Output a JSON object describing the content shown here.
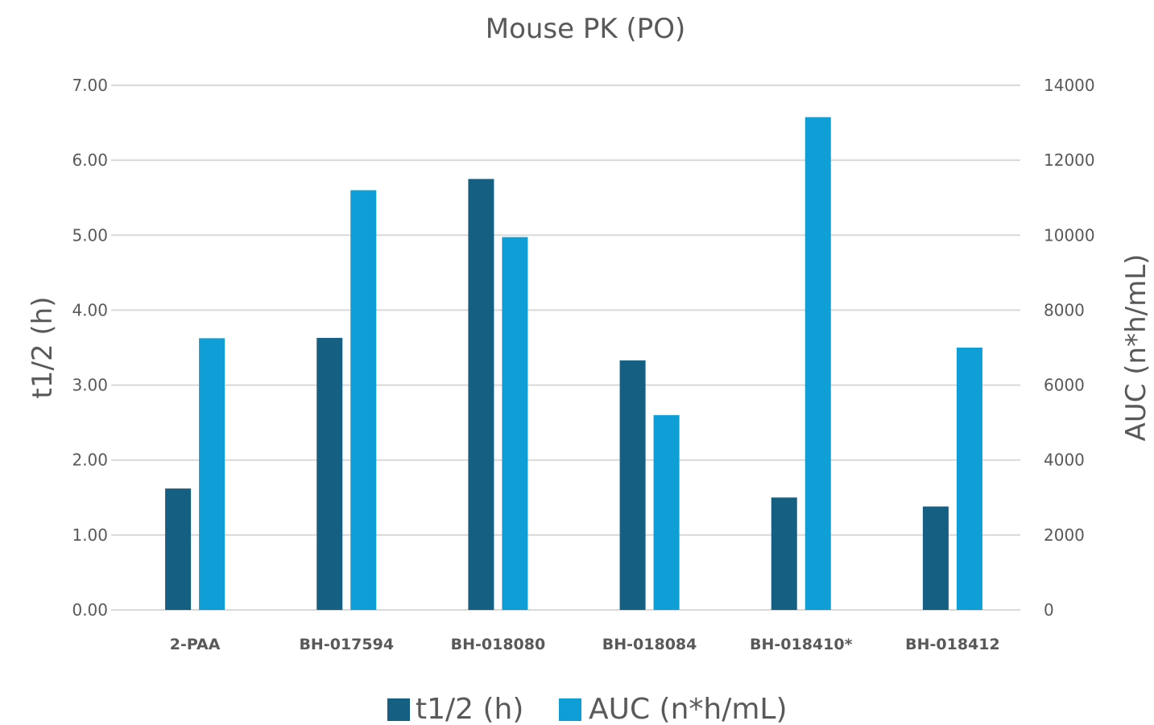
{
  "chart_data": {
    "type": "bar",
    "title": "Mouse PK (PO)",
    "categories": [
      "2-PAA",
      "BH-017594",
      "BH-018080",
      "BH-018084",
      "BH-018410*",
      "BH-018412"
    ],
    "series": [
      {
        "name": "t1/2 (h)",
        "axis": "left",
        "color": "#156082",
        "values": [
          1.62,
          3.63,
          5.75,
          3.33,
          1.5,
          1.38
        ]
      },
      {
        "name": "AUC (n*h/mL)",
        "axis": "right",
        "color": "#0F9ED5",
        "values": [
          7250,
          11200,
          9950,
          5200,
          13150,
          7000
        ]
      }
    ],
    "y_left": {
      "label": "t1/2 (h)",
      "range": [
        0,
        7
      ],
      "ticks": [
        "0.00",
        "1.00",
        "2.00",
        "3.00",
        "4.00",
        "5.00",
        "6.00",
        "7.00"
      ]
    },
    "y_right": {
      "label": "AUC (n*h/mL)",
      "range": [
        0,
        14000
      ],
      "ticks": [
        "0",
        "2000",
        "4000",
        "6000",
        "8000",
        "10000",
        "12000",
        "14000"
      ]
    },
    "grid": true,
    "legend_position": "bottom"
  }
}
